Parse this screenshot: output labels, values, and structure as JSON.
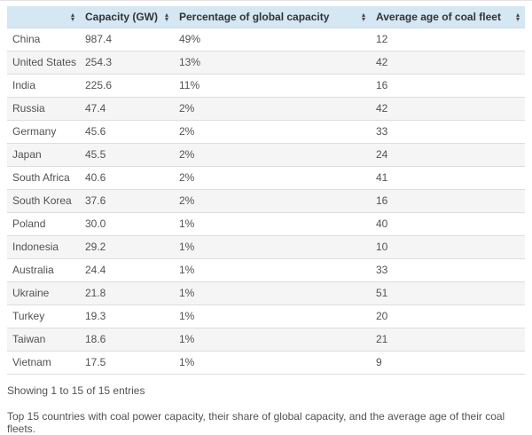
{
  "chart_data": {
    "type": "table",
    "columns": [
      "",
      "Capacity (GW)",
      "Percentage of global capacity",
      "Average age of coal fleet"
    ],
    "rows": [
      [
        "China",
        "987.4",
        "49%",
        "12"
      ],
      [
        "United States",
        "254.3",
        "13%",
        "42"
      ],
      [
        "India",
        "225.6",
        "11%",
        "16"
      ],
      [
        "Russia",
        "47.4",
        "2%",
        "42"
      ],
      [
        "Germany",
        "45.6",
        "2%",
        "33"
      ],
      [
        "Japan",
        "45.5",
        "2%",
        "24"
      ],
      [
        "South Africa",
        "40.6",
        "2%",
        "41"
      ],
      [
        "South Korea",
        "37.6",
        "2%",
        "16"
      ],
      [
        "Poland",
        "30.0",
        "1%",
        "40"
      ],
      [
        "Indonesia",
        "29.2",
        "1%",
        "10"
      ],
      [
        "Australia",
        "24.4",
        "1%",
        "33"
      ],
      [
        "Ukraine",
        "21.8",
        "1%",
        "51"
      ],
      [
        "Turkey",
        "19.3",
        "1%",
        "20"
      ],
      [
        "Taiwan",
        "18.6",
        "1%",
        "21"
      ],
      [
        "Vietnam",
        "17.5",
        "1%",
        "9"
      ]
    ],
    "title": "Top 15 countries with coal power capacity"
  },
  "icons": {
    "sort_up": "▴",
    "sort_down": "▾"
  },
  "footer": {
    "showing": "Showing 1 to 15 of 15 entries",
    "caption": "Top 15 countries with coal power capacity, their share of global capacity, and the average age of their coal fleets."
  },
  "colors": {
    "header_bg": "#d4e7f2",
    "row_alt_bg": "#f5f5f5",
    "row_border": "#dddddd",
    "body_text": "#525254",
    "header_text": "#333335",
    "sort_icon": "#454547"
  }
}
